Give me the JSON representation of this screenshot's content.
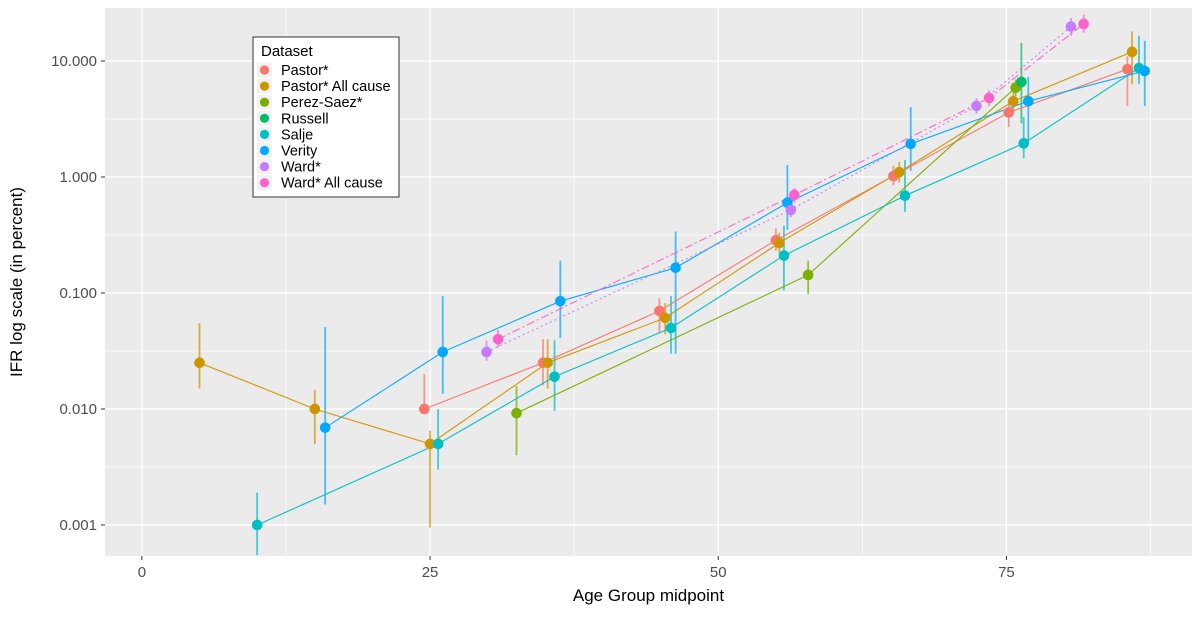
{
  "chart_data": {
    "type": "scatter",
    "title": "",
    "xlabel": "Age Group midpoint",
    "ylabel": "IFR log scale (in percent)",
    "panel_bg": "#EBEBEB",
    "grid_color": "#FFFFFF",
    "tick_label_color": "#4D4D4D",
    "axis_title_color": "#000000",
    "tick_mark_color": "#333333",
    "xlim": [
      -3.2,
      91.1
    ],
    "ylim": [
      0.00054,
      28.64
    ],
    "x_ticks": [
      {
        "v": 0,
        "label": "0"
      },
      {
        "v": 25,
        "label": "25"
      },
      {
        "v": 50,
        "label": "50"
      },
      {
        "v": 75,
        "label": "75"
      }
    ],
    "x_minor": [
      12.5,
      37.5,
      62.5,
      87.5
    ],
    "y_ticks": [
      {
        "v": 10,
        "label": "10.000"
      },
      {
        "v": 1,
        "label": "1.000"
      },
      {
        "v": 0.1,
        "label": "0.100"
      },
      {
        "v": 0.01,
        "label": "0.010"
      },
      {
        "v": 0.001,
        "label": "0.001"
      }
    ],
    "y_minor": [
      3.162,
      0.3162,
      0.03162,
      0.003162
    ],
    "legend": {
      "title": "Dataset",
      "position": "top-left-inset"
    },
    "series": [
      {
        "name": "Pastor*",
        "color": "#F8766D",
        "dash": "",
        "points": [
          {
            "x": 24.5,
            "y": 0.01,
            "lo": 0.0095,
            "hi": 0.02
          },
          {
            "x": 34.8,
            "y": 0.025,
            "lo": 0.016,
            "hi": 0.04
          },
          {
            "x": 44.9,
            "y": 0.07,
            "lo": 0.045,
            "hi": 0.09
          },
          {
            "x": 55.0,
            "y": 0.285,
            "lo": 0.23,
            "hi": 0.36
          },
          {
            "x": 65.2,
            "y": 1.02,
            "lo": 0.85,
            "hi": 1.25
          },
          {
            "x": 75.2,
            "y": 3.6,
            "lo": 2.7,
            "hi": 4.7
          },
          {
            "x": 85.5,
            "y": 8.5,
            "lo": 4.1,
            "hi": 11.0
          }
        ]
      },
      {
        "name": "Pastor* All cause",
        "color": "#CD9600",
        "dash": "",
        "points": [
          {
            "x": 5.0,
            "y": 0.025,
            "lo": 0.015,
            "hi": 0.055
          },
          {
            "x": 15.0,
            "y": 0.01,
            "lo": 0.005,
            "hi": 0.0146
          },
          {
            "x": 25.0,
            "y": 0.005,
            "lo": 0.00095,
            "hi": 0.0065
          },
          {
            "x": 35.2,
            "y": 0.025,
            "lo": 0.015,
            "hi": 0.04
          },
          {
            "x": 45.4,
            "y": 0.061,
            "lo": 0.044,
            "hi": 0.082
          },
          {
            "x": 55.3,
            "y": 0.27,
            "lo": 0.22,
            "hi": 0.33
          },
          {
            "x": 65.7,
            "y": 1.1,
            "lo": 0.9,
            "hi": 1.35
          },
          {
            "x": 75.6,
            "y": 4.5,
            "lo": 3.7,
            "hi": 5.5
          },
          {
            "x": 85.9,
            "y": 12.0,
            "lo": 6.3,
            "hi": 18.0
          }
        ]
      },
      {
        "name": "Perez-Saez*",
        "color": "#7CAE00",
        "dash": "",
        "points": [
          {
            "x": 32.5,
            "y": 0.0092,
            "lo": 0.004,
            "hi": 0.0158
          },
          {
            "x": 57.8,
            "y": 0.143,
            "lo": 0.098,
            "hi": 0.19
          },
          {
            "x": 75.8,
            "y": 5.9,
            "lo": 5.0,
            "hi": 6.9
          }
        ]
      },
      {
        "name": "Russell",
        "color": "#00BE67",
        "dash": "",
        "points": [
          {
            "x": 76.3,
            "y": 6.6,
            "lo": 2.9,
            "hi": 14.3
          }
        ]
      },
      {
        "name": "Salje",
        "color": "#00BFC4",
        "dash": "",
        "points": [
          {
            "x": 10.0,
            "y": 0.001,
            "lo": 0.00055,
            "hi": 0.0019
          },
          {
            "x": 25.7,
            "y": 0.005,
            "lo": 0.003,
            "hi": 0.01
          },
          {
            "x": 35.8,
            "y": 0.019,
            "lo": 0.0096,
            "hi": 0.039
          },
          {
            "x": 45.9,
            "y": 0.05,
            "lo": 0.03,
            "hi": 0.094
          },
          {
            "x": 55.7,
            "y": 0.21,
            "lo": 0.105,
            "hi": 0.38
          },
          {
            "x": 66.2,
            "y": 0.69,
            "lo": 0.5,
            "hi": 1.4
          },
          {
            "x": 76.5,
            "y": 1.95,
            "lo": 1.45,
            "hi": 3.3
          },
          {
            "x": 86.5,
            "y": 8.7,
            "lo": 6.3,
            "hi": 16.5
          }
        ]
      },
      {
        "name": "Verity",
        "color": "#00A9FF",
        "dash": "",
        "points": [
          {
            "x": 15.9,
            "y": 0.0069,
            "lo": 0.0015,
            "hi": 0.051
          },
          {
            "x": 26.1,
            "y": 0.031,
            "lo": 0.0135,
            "hi": 0.094
          },
          {
            "x": 36.3,
            "y": 0.085,
            "lo": 0.041,
            "hi": 0.19
          },
          {
            "x": 46.3,
            "y": 0.165,
            "lo": 0.03,
            "hi": 0.34
          },
          {
            "x": 56.0,
            "y": 0.6,
            "lo": 0.35,
            "hi": 1.27
          },
          {
            "x": 66.7,
            "y": 1.93,
            "lo": 1.13,
            "hi": 4.0
          },
          {
            "x": 76.9,
            "y": 4.5,
            "lo": 2.0,
            "hi": 7.3
          },
          {
            "x": 87.0,
            "y": 8.2,
            "lo": 4.1,
            "hi": 14.9
          }
        ]
      },
      {
        "name": "Ward*",
        "color": "#C77CFF",
        "dash": "2 3",
        "points": [
          {
            "x": 29.9,
            "y": 0.031,
            "lo": 0.026,
            "hi": 0.039
          },
          {
            "x": 56.3,
            "y": 0.52,
            "lo": 0.45,
            "hi": 0.6
          },
          {
            "x": 72.4,
            "y": 4.1,
            "lo": 3.5,
            "hi": 4.8
          },
          {
            "x": 80.6,
            "y": 19.8,
            "lo": 16.5,
            "hi": 23.5
          }
        ]
      },
      {
        "name": "Ward* All cause",
        "color": "#FF61CC",
        "dash": "8 3 2 3",
        "points": [
          {
            "x": 30.9,
            "y": 0.04,
            "lo": 0.034,
            "hi": 0.048
          },
          {
            "x": 56.6,
            "y": 0.7,
            "lo": 0.6,
            "hi": 0.8
          },
          {
            "x": 73.5,
            "y": 4.8,
            "lo": 4.1,
            "hi": 5.6
          },
          {
            "x": 81.7,
            "y": 20.9,
            "lo": 17.5,
            "hi": 25.0
          }
        ]
      }
    ]
  }
}
